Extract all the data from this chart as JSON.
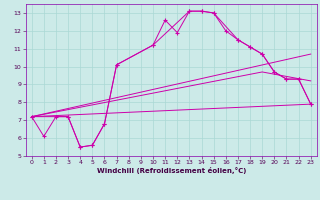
{
  "xlabel": "Windchill (Refroidissement éolien,°C)",
  "ylim": [
    5,
    13.5
  ],
  "xlim": [
    -0.5,
    23.5
  ],
  "yticks": [
    5,
    6,
    7,
    8,
    9,
    10,
    11,
    12,
    13
  ],
  "xticks": [
    0,
    1,
    2,
    3,
    4,
    5,
    6,
    7,
    8,
    9,
    10,
    11,
    12,
    13,
    14,
    15,
    16,
    17,
    18,
    19,
    20,
    21,
    22,
    23
  ],
  "bg_color": "#cceae8",
  "grid_color": "#aad8d5",
  "line_color": "#cc00aa",
  "line1_x": [
    0,
    1,
    2,
    3,
    4,
    5,
    6,
    7,
    10,
    11,
    12,
    13,
    14,
    15,
    16,
    17,
    18,
    19,
    20,
    21,
    22,
    23
  ],
  "line1_y": [
    7.2,
    6.1,
    7.2,
    7.2,
    5.5,
    5.6,
    6.8,
    10.1,
    11.2,
    12.6,
    11.9,
    13.1,
    13.1,
    13.0,
    12.0,
    11.5,
    11.1,
    10.7,
    9.7,
    9.3,
    9.3,
    7.9
  ],
  "line2_x": [
    0,
    3,
    4,
    5,
    6,
    7,
    10,
    13,
    14,
    15,
    17,
    18,
    19,
    20,
    21,
    22,
    23
  ],
  "line2_y": [
    7.2,
    7.2,
    5.5,
    5.6,
    6.8,
    10.1,
    11.2,
    13.1,
    13.1,
    13.0,
    11.5,
    11.1,
    10.7,
    9.7,
    9.3,
    9.3,
    7.9
  ],
  "line3_x": [
    0,
    23
  ],
  "line3_y": [
    7.2,
    7.9
  ],
  "line4_x": [
    0,
    23
  ],
  "line4_y": [
    7.2,
    10.7
  ],
  "line5_x": [
    0,
    19,
    23
  ],
  "line5_y": [
    7.2,
    9.7,
    9.2
  ]
}
